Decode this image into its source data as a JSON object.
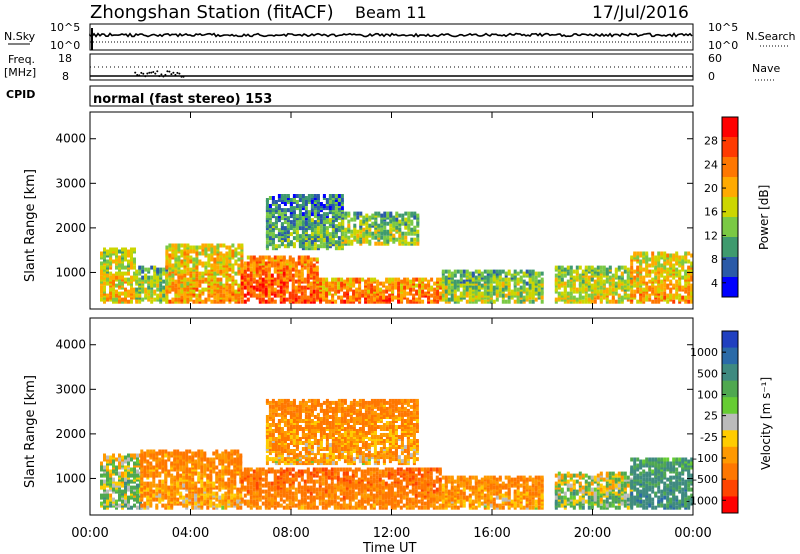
{
  "header": {
    "station": "Zhongshan Station (fitACF)",
    "beam": "Beam 11",
    "date": "17/Jul/2016"
  },
  "summary": {
    "nsky_label": "N.Sky",
    "nsearch_label": "N.Search",
    "nsky_ticks": [
      "10^5",
      "10^0"
    ],
    "nsearch_ticks": [
      "10^5",
      "10^0"
    ],
    "freq_label": [
      "Freq.",
      "[MHz]"
    ],
    "freq_ticks": [
      "18",
      "8"
    ],
    "nave_label": "Nave",
    "nave_ticks": [
      "60",
      "0"
    ],
    "cpid_label": "CPID",
    "cpid_text": "normal (fast stereo) 153"
  },
  "power_panel": {
    "ylabel": "Slant Range [km]",
    "yticks": [
      "4000",
      "3000",
      "2000",
      "1000"
    ],
    "colorbar_label": "Power [dB]",
    "colorbar_ticks": [
      "28",
      "24",
      "20",
      "16",
      "12",
      "8",
      "4"
    ],
    "colors": [
      "#ff0000",
      "#ff3a00",
      "#ff7700",
      "#ffaa00",
      "#ccd600",
      "#7ac944",
      "#3f9a6e",
      "#2a5aa8",
      "#0000ff"
    ]
  },
  "velocity_panel": {
    "ylabel": "Slant Range [km]",
    "yticks": [
      "4000",
      "3000",
      "2000",
      "1000"
    ],
    "colorbar_label": "Velocity [m s⁻¹]",
    "colorbar_ticks": [
      "1000",
      "500",
      "100",
      "25",
      "-25",
      "-100",
      "-500",
      "-1000"
    ],
    "colors": [
      "#2040c0",
      "#2a6aa8",
      "#3f8a80",
      "#4fa850",
      "#66cc33",
      "#bbbbbb",
      "#ffcc00",
      "#ff9900",
      "#ff7700",
      "#ff4400",
      "#ff0000"
    ]
  },
  "xaxis": {
    "ticks": [
      "00:00",
      "04:00",
      "08:00",
      "12:00",
      "16:00",
      "20:00",
      "00:00"
    ],
    "label": "Time UT"
  },
  "chart_data": [
    {
      "type": "heatmap",
      "title": "Zhongshan Station (fitACF) Beam 11 17/Jul/2016",
      "xlabel": "Time UT",
      "ylabel": "Slant Range [km]",
      "zlabel": "Power [dB]",
      "xlim": [
        0,
        24
      ],
      "ylim": [
        180,
        4600
      ],
      "zlim": [
        0,
        30
      ],
      "regions": [
        {
          "t": [
            0.4,
            1.8
          ],
          "range": [
            300,
            1500
          ],
          "power": 18
        },
        {
          "t": [
            1.8,
            3.0
          ],
          "range": [
            300,
            1100
          ],
          "power": 14
        },
        {
          "t": [
            3.0,
            6.0
          ],
          "range": [
            300,
            1600
          ],
          "power": 20
        },
        {
          "t": [
            6.0,
            9.0
          ],
          "range": [
            300,
            1300
          ],
          "power": 26
        },
        {
          "t": [
            9.0,
            14.0
          ],
          "range": [
            300,
            800
          ],
          "power": 24
        },
        {
          "t": [
            14.0,
            18.0
          ],
          "range": [
            300,
            1000
          ],
          "power": 14
        },
        {
          "t": [
            18.5,
            21.5
          ],
          "range": [
            300,
            1100
          ],
          "power": 16
        },
        {
          "t": [
            21.5,
            24.0
          ],
          "range": [
            300,
            1400
          ],
          "power": 20
        },
        {
          "t": [
            7.0,
            10.0
          ],
          "range": [
            1500,
            2700
          ],
          "power": 10
        },
        {
          "t": [
            10.0,
            13.0
          ],
          "range": [
            1600,
            2300
          ],
          "power": 14
        }
      ]
    },
    {
      "type": "heatmap",
      "title": "Zhongshan Station (fitACF) Beam 11 17/Jul/2016",
      "xlabel": "Time UT",
      "ylabel": "Slant Range [km]",
      "zlabel": "Velocity [m s⁻¹]",
      "xlim": [
        0,
        24
      ],
      "ylim": [
        180,
        4600
      ],
      "zlim": [
        -1000,
        1000
      ],
      "regions": [
        {
          "t": [
            0.4,
            2.0
          ],
          "range": [
            300,
            1500
          ],
          "velocity": 100
        },
        {
          "t": [
            2.0,
            6.0
          ],
          "range": [
            300,
            1600
          ],
          "velocity": -100
        },
        {
          "t": [
            6.0,
            14.0
          ],
          "range": [
            300,
            1200
          ],
          "velocity": -200
        },
        {
          "t": [
            7.0,
            13.0
          ],
          "range": [
            1300,
            2700
          ],
          "velocity": -100
        },
        {
          "t": [
            14.0,
            18.0
          ],
          "range": [
            300,
            1000
          ],
          "velocity": -100
        },
        {
          "t": [
            18.5,
            21.5
          ],
          "range": [
            300,
            1100
          ],
          "velocity": 100
        },
        {
          "t": [
            21.5,
            24.0
          ],
          "range": [
            300,
            1400
          ],
          "velocity": 300
        }
      ]
    }
  ]
}
